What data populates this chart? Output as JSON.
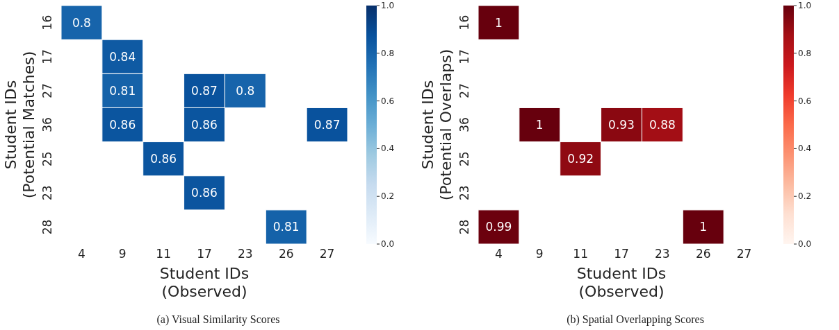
{
  "chart_data": [
    {
      "type": "heatmap",
      "title": "(a) Visual Similarity Scores",
      "xlabel": "Student IDs\n(Observed)",
      "ylabel": "Student IDs\n(Potential Matches)",
      "categories": [
        "4",
        "9",
        "11",
        "17",
        "23",
        "26",
        "27"
      ],
      "y_categories": [
        "16",
        "17",
        "27",
        "36",
        "25",
        "23",
        "28"
      ],
      "cells": [
        [
          0.8,
          null,
          null,
          null,
          null,
          null,
          null
        ],
        [
          null,
          0.84,
          null,
          null,
          null,
          null,
          null
        ],
        [
          null,
          0.81,
          null,
          0.87,
          0.8,
          null,
          null
        ],
        [
          null,
          0.86,
          null,
          0.86,
          null,
          null,
          0.87
        ],
        [
          null,
          null,
          0.86,
          null,
          null,
          null,
          null
        ],
        [
          null,
          null,
          null,
          0.86,
          null,
          null,
          null
        ],
        [
          null,
          null,
          null,
          null,
          null,
          0.81,
          null
        ]
      ],
      "data_labels": true,
      "clim": [
        0,
        1
      ],
      "cticks": [
        {
          "value": 0,
          "label": "0.0"
        },
        {
          "value": 0.2,
          "label": "0.2"
        },
        {
          "value": 0.4,
          "label": "0.4"
        },
        {
          "value": 0.6,
          "label": "0.6"
        },
        {
          "value": 0.8,
          "label": "0.8"
        },
        {
          "value": 1,
          "label": "1.0"
        }
      ]
    },
    {
      "type": "heatmap",
      "title": "(b) Spatial Overlapping Scores",
      "xlabel": "Student IDs\n(Observed)",
      "ylabel": "Student IDs\n(Potential Overlaps)",
      "categories": [
        "4",
        "9",
        "11",
        "17",
        "23",
        "26",
        "27"
      ],
      "y_categories": [
        "16",
        "17",
        "27",
        "36",
        "25",
        "23",
        "28"
      ],
      "cells": [
        [
          1,
          null,
          null,
          null,
          null,
          null,
          null
        ],
        [
          null,
          null,
          null,
          null,
          null,
          null,
          null
        ],
        [
          null,
          null,
          null,
          null,
          null,
          null,
          null
        ],
        [
          null,
          1,
          null,
          0.93,
          0.88,
          null,
          null
        ],
        [
          null,
          null,
          0.92,
          null,
          null,
          null,
          null
        ],
        [
          null,
          null,
          null,
          null,
          null,
          null,
          null
        ],
        [
          0.99,
          null,
          null,
          null,
          null,
          1,
          null
        ]
      ],
      "data_labels": true,
      "clim": [
        0,
        1
      ],
      "cticks": [
        {
          "value": 0,
          "label": "0.0"
        },
        {
          "value": 0.2,
          "label": "0.2"
        },
        {
          "value": 0.4,
          "label": "0.4"
        },
        {
          "value": 0.6,
          "label": "0.6"
        },
        {
          "value": 0.8,
          "label": "0.8"
        },
        {
          "value": 1,
          "label": "1.0"
        }
      ]
    }
  ]
}
